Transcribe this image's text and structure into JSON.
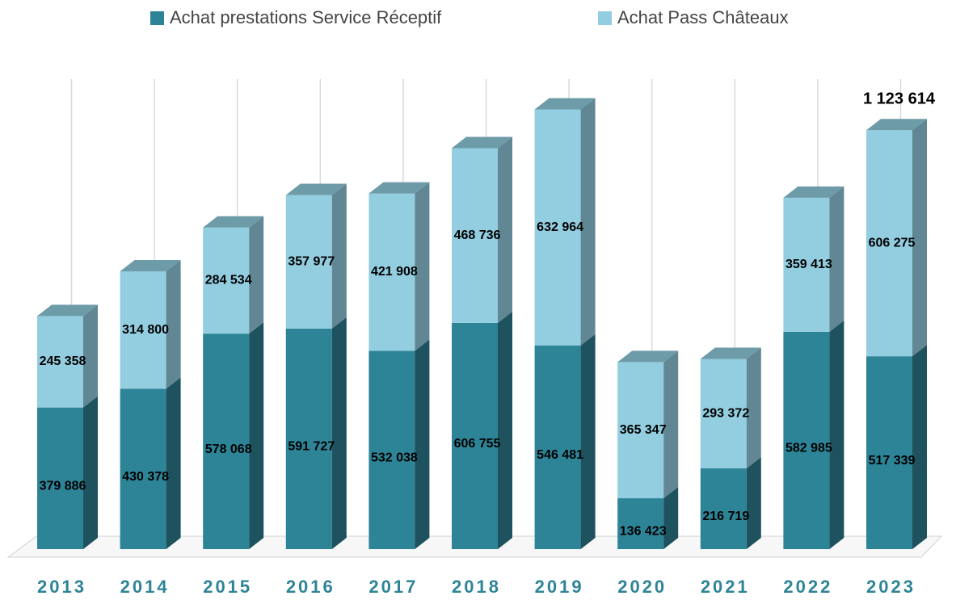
{
  "chart_data": {
    "type": "bar3d_stacked",
    "categories": [
      "2013",
      "2014",
      "2015",
      "2016",
      "2017",
      "2018",
      "2019",
      "2020",
      "2021",
      "2022",
      "2023"
    ],
    "series": [
      {
        "name": "Achat prestations Service Réceptif",
        "color": "#2e8497",
        "values": [
          379886,
          430378,
          578068,
          591727,
          532038,
          606755,
          546481,
          136423,
          216719,
          582985,
          517339
        ],
        "value_labels": [
          "379 886",
          "430 378",
          "578 068",
          "591 727",
          "532 038",
          "606 755",
          "546 481",
          "136 423",
          "216 719",
          "582 985",
          "517 339"
        ]
      },
      {
        "name": "Achat Pass Châteaux",
        "color": "#93cde0",
        "values": [
          245358,
          314800,
          284534,
          357977,
          421908,
          468736,
          632964,
          365347,
          293372,
          359413,
          606275
        ],
        "value_labels": [
          "245 358",
          "314 800",
          "284 534",
          "357 977",
          "421 908",
          "468 736",
          "632 964",
          "365 347",
          "293 372",
          "359 413",
          "606 275"
        ]
      }
    ],
    "annotation": "1 123 614",
    "ylim": [
      0,
      1200000
    ]
  }
}
